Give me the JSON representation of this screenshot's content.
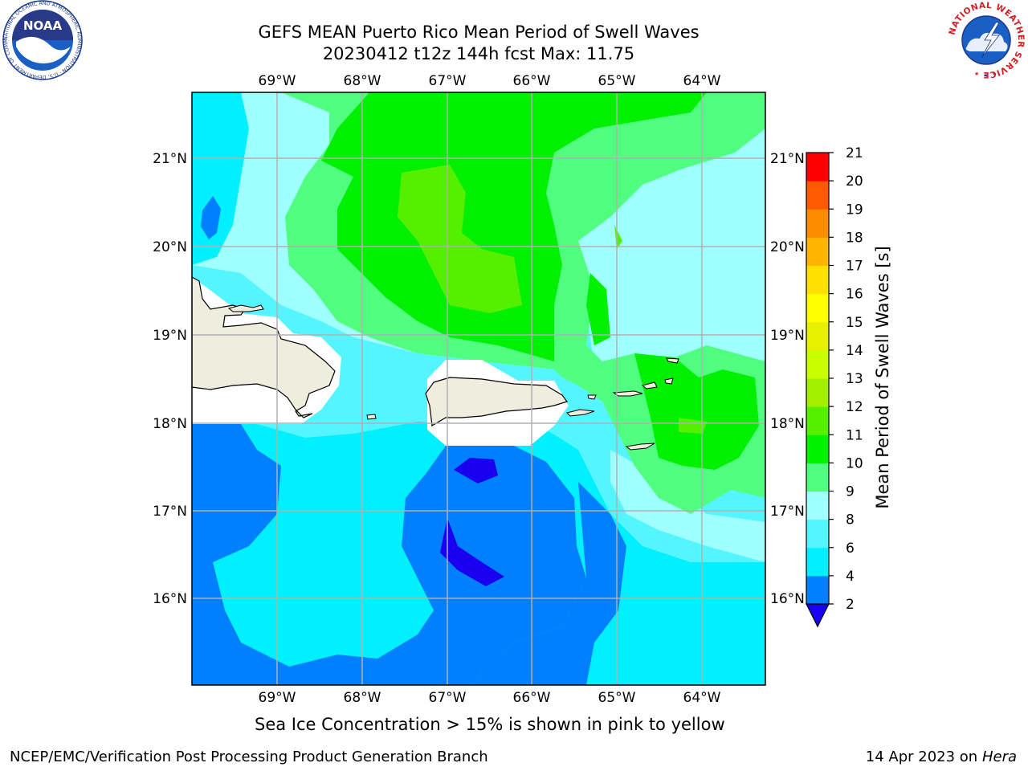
{
  "title": {
    "line1": "GEFS MEAN Puerto Rico Mean Period of Swell Waves",
    "line2": "20230412 t12z 144h fcst   Max: 11.75"
  },
  "map": {
    "lon_labels": [
      "69°W",
      "68°W",
      "67°W",
      "66°W",
      "65°W",
      "64°W"
    ],
    "lat_labels": [
      "21°N",
      "20°N",
      "19°N",
      "18°N",
      "17°N",
      "16°N"
    ],
    "colors": {
      "land": "#efedde",
      "lt2": "#1a00f0",
      "c2_4": "#0080ff",
      "c4_6": "#00f0ff",
      "c6_8": "#55f5ff",
      "c8_9": "#a0ffff",
      "c9_10": "#50ff80",
      "c10_11": "#00f000",
      "c11_12": "#55f000",
      "grid": "#b0b0b0"
    }
  },
  "colorbar": {
    "label": "Mean Period of Swell Waves [s]",
    "ticks": [
      "2",
      "4",
      "6",
      "8",
      "9",
      "10",
      "11",
      "12",
      "13",
      "14",
      "15",
      "16",
      "17",
      "18",
      "19",
      "20",
      "21"
    ],
    "colors": [
      "#0080ff",
      "#00f0ff",
      "#55f5ff",
      "#a0ffff",
      "#50ff80",
      "#00f000",
      "#55f000",
      "#a0f000",
      "#c8ff00",
      "#e6f000",
      "#ffff00",
      "#ffe000",
      "#ffb400",
      "#ff8c00",
      "#ff5a00",
      "#ff2800"
    ],
    "extend_color": "#1a00f0",
    "top_color": "#ff0000"
  },
  "notice": "Sea Ice Concentration > 15% is shown in pink to yellow",
  "footer": {
    "left": "NCEP/EMC/Verification Post Processing Product Generation Branch",
    "date": "14 Apr 2023 on ",
    "host": "Hera"
  },
  "logos": {
    "noaa_text": "NOAA",
    "noaa_ring": "NATIONAL OCEANIC AND ATMOSPHERIC ADMINISTRATION · U.S. DEPARTMENT OF COMMERCE",
    "nws_ring": "NATIONAL WEATHER SERVICE"
  }
}
